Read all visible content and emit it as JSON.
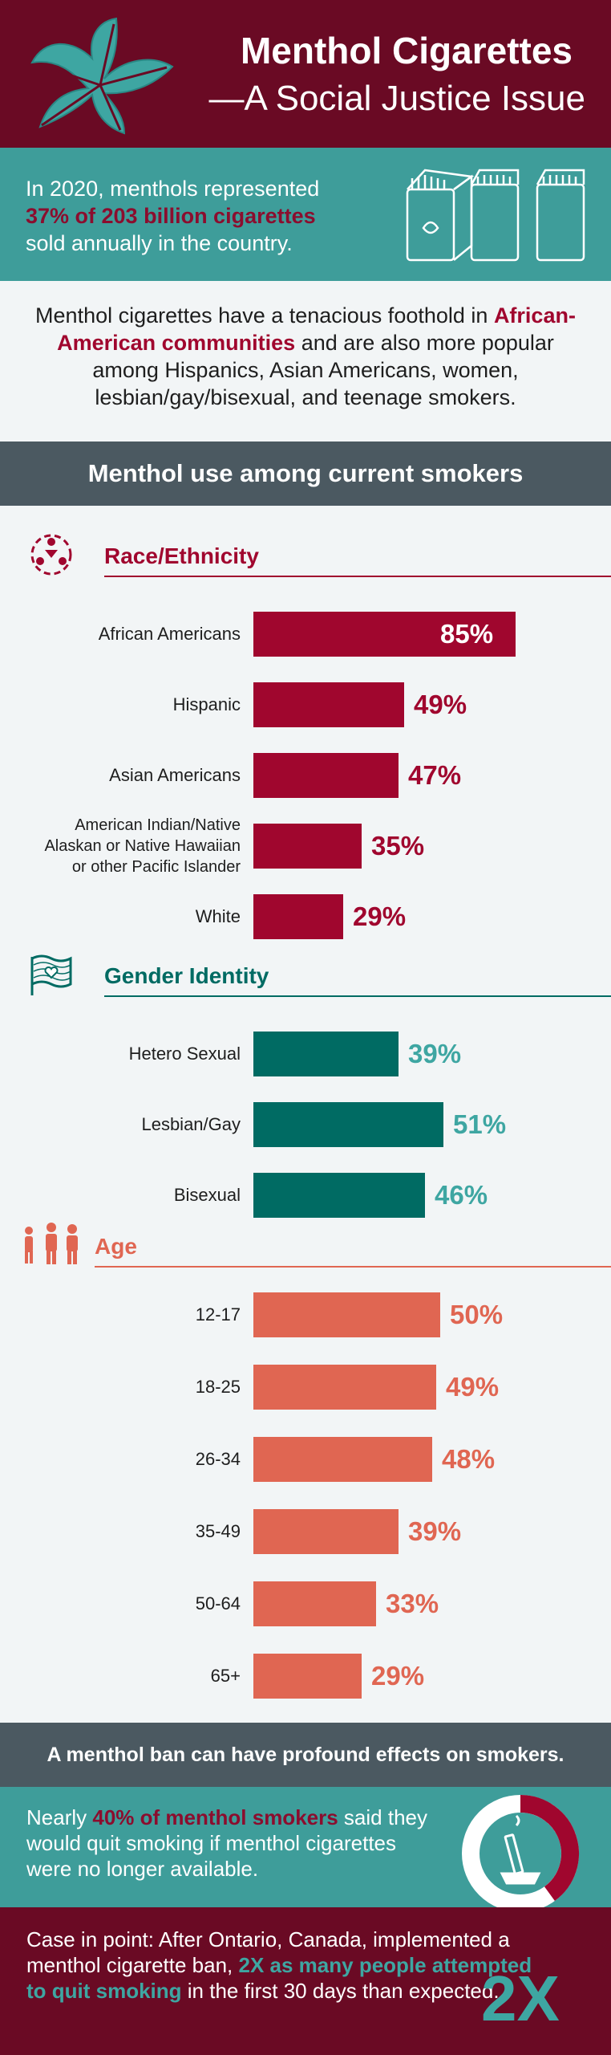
{
  "header": {
    "title_line1": "Menthol Cigarettes",
    "title_line2": "—A Social Justice Issue"
  },
  "intro": {
    "text_before": "In 2020, menthols represented",
    "highlight": "37% of 203 billion cigarettes",
    "text_after": "sold annually in the country."
  },
  "description": {
    "text_before": "Menthol cigarettes have a tenacious foothold in",
    "highlight": "African-American communities",
    "text_after": "and are also more popular among Hispanics, Asian Americans, women, lesbian/gay/bisexual, and teenage smokers."
  },
  "section_band": "Menthol use among current smokers",
  "colors": {
    "race": "#a0062e",
    "gender": "#006b63",
    "gender_value": "#3ea6a2",
    "age": "#e06652",
    "header_bg": "#6a0a24",
    "teal_bg": "#3e9d9a",
    "band_bg": "#4b5961"
  },
  "chart_data": [
    {
      "type": "bar",
      "title": "Race/Ethnicity",
      "icon": "people-circle-icon",
      "categories": [
        "African Americans",
        "Hispanic",
        "Asian Americans",
        "American Indian/Native Alaskan or Native Hawaiian or other Pacific Islander",
        "White"
      ],
      "category_lines": [
        [
          "African Americans"
        ],
        [
          "Hispanic"
        ],
        [
          "Asian Americans"
        ],
        [
          "American Indian/Native",
          "Alaskan or Native Hawaiian",
          "or other Pacific Islander"
        ],
        [
          "White"
        ]
      ],
      "values": [
        85,
        49,
        47,
        35,
        29
      ],
      "labels": [
        "85%",
        "49%",
        "47%",
        "35%",
        "29%"
      ],
      "unit": "%"
    },
    {
      "type": "bar",
      "title": "Gender Identity",
      "icon": "pride-flag-heart-icon",
      "categories": [
        "Hetero Sexual",
        "Lesbian/Gay",
        "Bisexual"
      ],
      "category_lines": [
        [
          "Hetero Sexual"
        ],
        [
          "Lesbian/Gay"
        ],
        [
          "Bisexual"
        ]
      ],
      "values": [
        39,
        51,
        46
      ],
      "labels": [
        "39%",
        "51%",
        "46%"
      ],
      "unit": "%"
    },
    {
      "type": "bar",
      "title": "Age",
      "icon": "family-icon",
      "categories": [
        "12-17",
        "18-25",
        "26-34",
        "35-49",
        "50-64",
        "65+"
      ],
      "category_lines": [
        [
          "12-17"
        ],
        [
          "18-25"
        ],
        [
          "26-34"
        ],
        [
          "35-49"
        ],
        [
          "50-64"
        ],
        [
          "65+"
        ]
      ],
      "values": [
        50,
        49,
        48,
        39,
        33,
        29
      ],
      "labels": [
        "50%",
        "49%",
        "48%",
        "39%",
        "33%",
        "29%"
      ],
      "unit": "%"
    }
  ],
  "ban_band": "A menthol ban can have profound effects on smokers.",
  "quit": {
    "text_before": "Nearly",
    "highlight": "40% of menthol smokers",
    "text_after": "said they would quit smoking if menthol cigarettes were no longer available.",
    "donut_value": 40
  },
  "ontario": {
    "text_before": "Case in point: After Ontario, Canada, implemented a menthol cigarette ban,",
    "highlight": "2X as many people attempted to quit smoking",
    "text_after": "in the first 30 days than expected.",
    "big_number": "2X"
  }
}
